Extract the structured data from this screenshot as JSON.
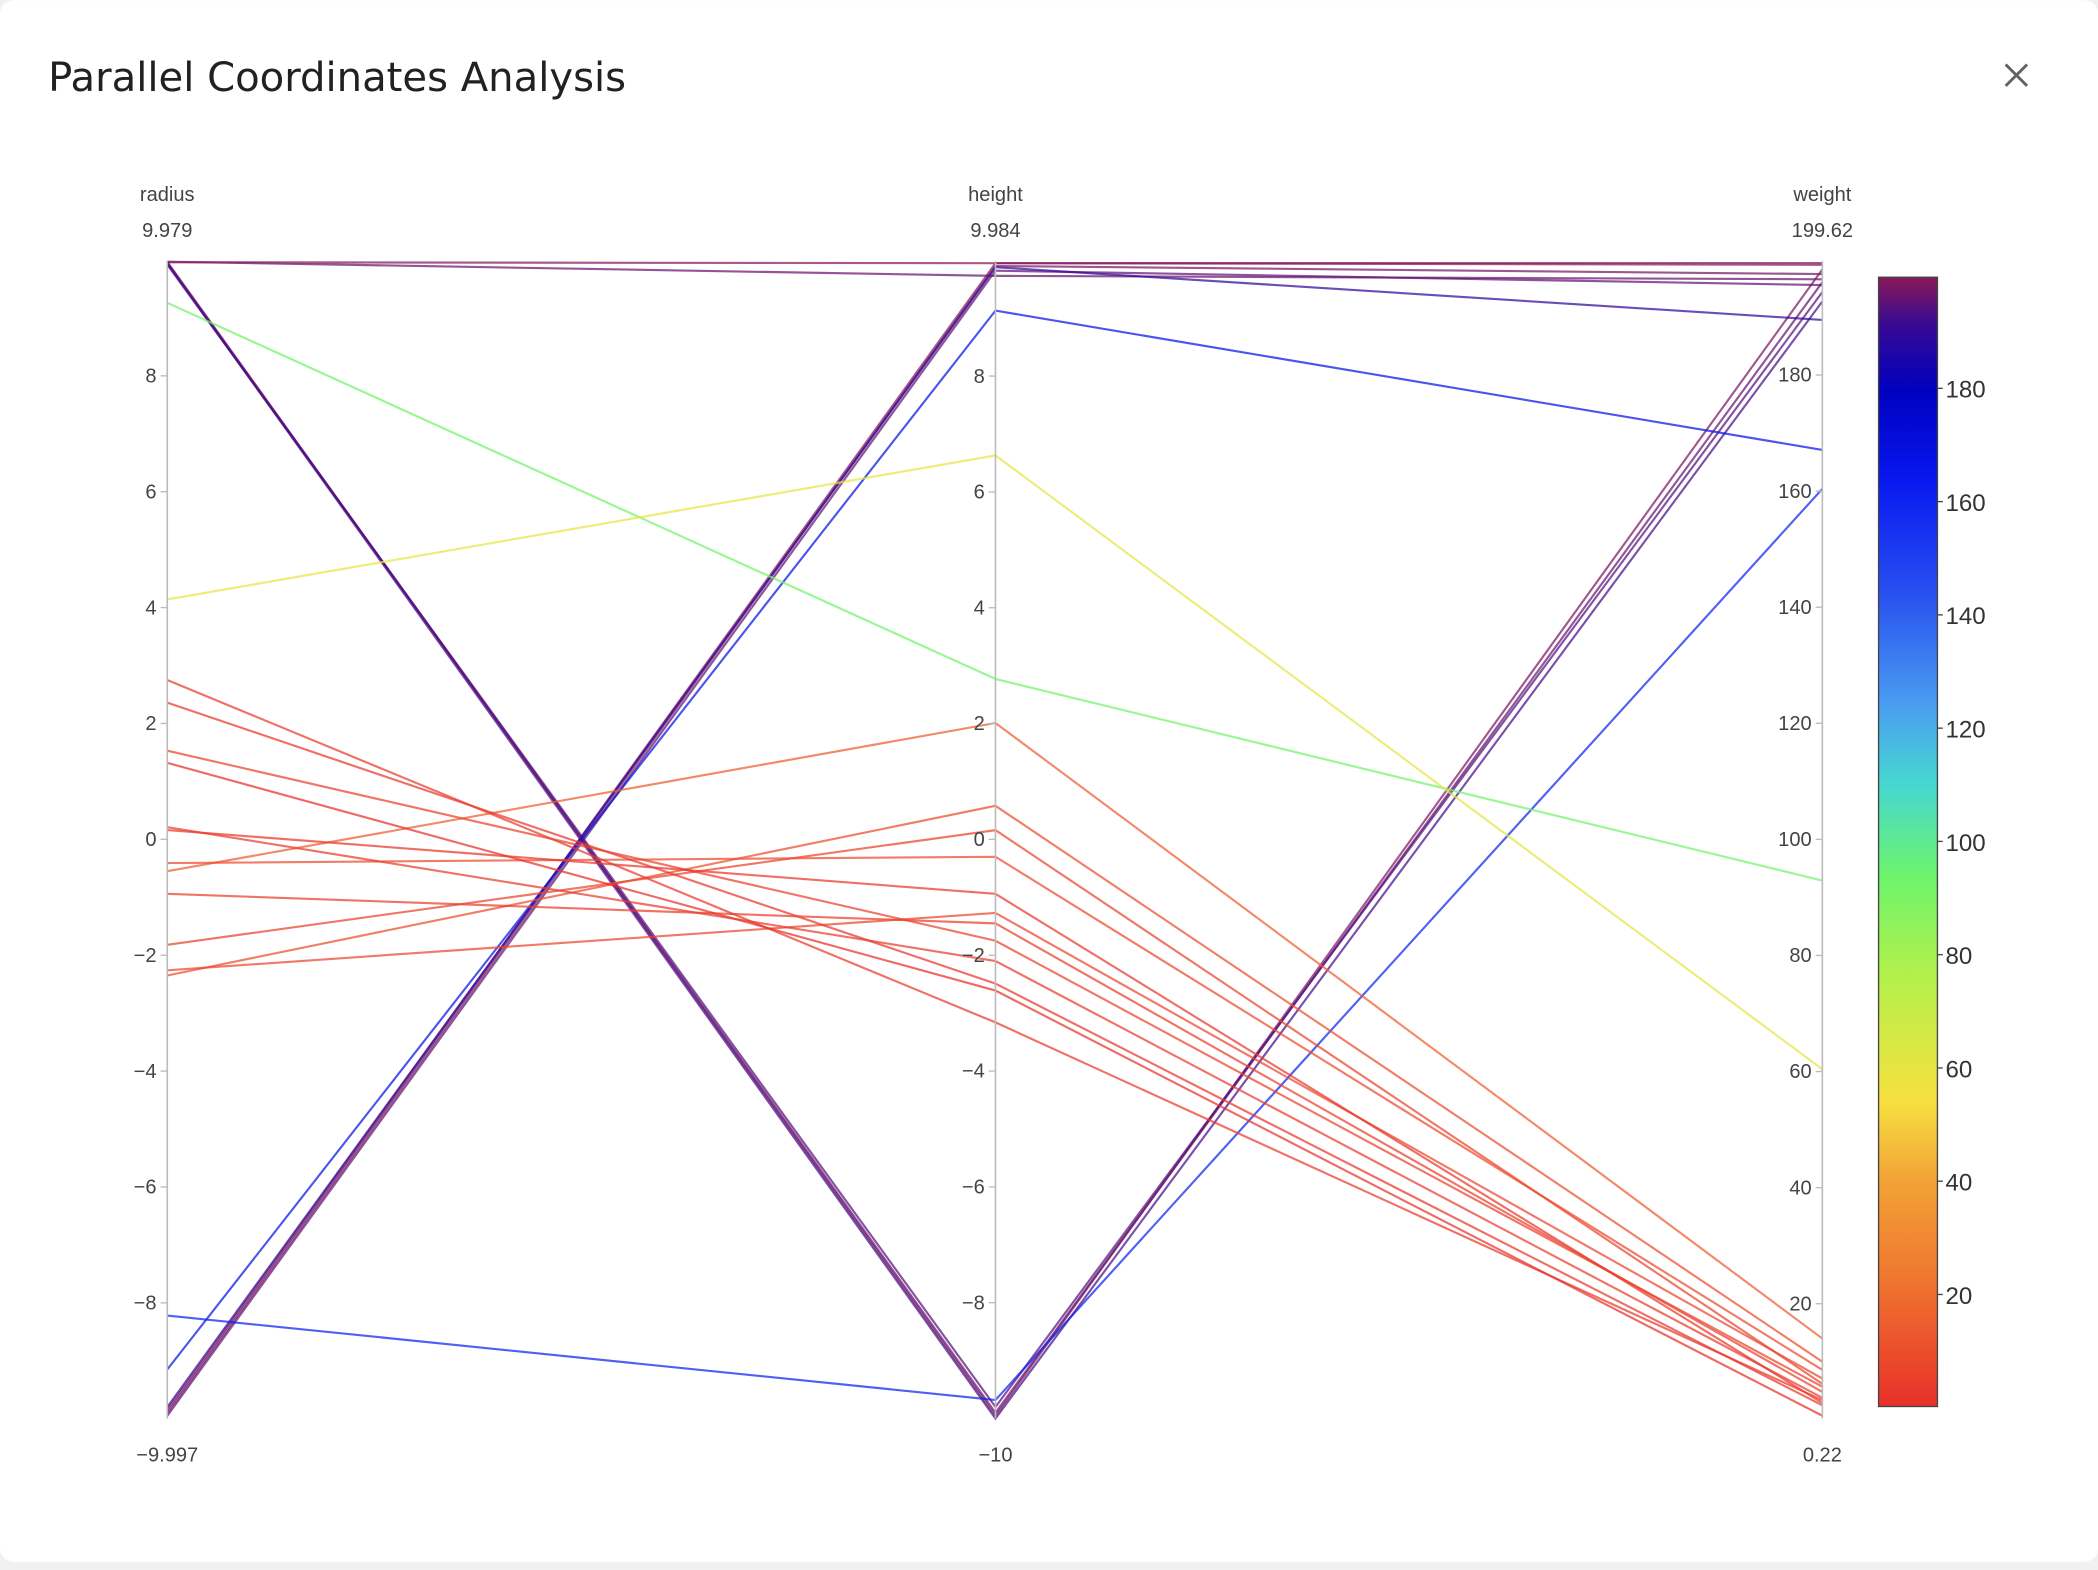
{
  "dialog": {
    "title": "Parallel Coordinates Analysis"
  },
  "chart_data": {
    "type": "parcoords",
    "dimensions": [
      {
        "label": "radius",
        "range": [
          {
            "value": -9.997,
            "label": "−9.997"
          },
          9.979
        ],
        "ticks": [
          {
            "value": -8,
            "label": "−8"
          },
          {
            "value": -6,
            "label": "−6"
          },
          {
            "value": -4,
            "label": "−4"
          },
          {
            "value": -2,
            "label": "−2"
          },
          0,
          2,
          4,
          6,
          8
        ]
      },
      {
        "label": "height",
        "range": [
          {
            "value": -10,
            "label": "−10"
          },
          9.984
        ],
        "ticks": [
          {
            "value": -8,
            "label": "−8"
          },
          {
            "value": -6,
            "label": "−6"
          },
          {
            "value": -4,
            "label": "−4"
          },
          {
            "value": -2,
            "label": "−2"
          },
          0,
          2,
          4,
          6,
          8
        ]
      },
      {
        "label": "weight",
        "range": [
          0.22,
          199.62
        ],
        "ticks": [
          20,
          40,
          60,
          80,
          100,
          120,
          140,
          160,
          180
        ]
      }
    ],
    "color_by": 2,
    "line_opacity": 0.72,
    "colorscale": [
      [
        0,
        "#e8302a"
      ],
      [
        0.12,
        "#f07a30"
      ],
      [
        0.2,
        "#f2a236"
      ],
      [
        0.27,
        "#f7e040"
      ],
      [
        0.38,
        "#b4f04a"
      ],
      [
        0.47,
        "#6cf46c"
      ],
      [
        0.55,
        "#46d8d0"
      ],
      [
        0.62,
        "#4a9ef0"
      ],
      [
        0.72,
        "#2850f0"
      ],
      [
        0.82,
        "#0818f0"
      ],
      [
        0.9,
        "#0000c0"
      ],
      [
        0.96,
        "#3a0a90"
      ],
      [
        1,
        "#8a1a58"
      ]
    ],
    "colorbar_ticks": [
      20,
      40,
      60,
      80,
      100,
      120,
      140,
      160,
      180
    ],
    "lines": [
      [
        9.97,
        9.73,
        196.5
      ],
      [
        9.96,
        9.95,
        199.3
      ],
      [
        9.97,
        -9.95,
        198.2
      ],
      [
        9.95,
        -9.9,
        196.0
      ],
      [
        9.92,
        -9.8,
        194.3
      ],
      [
        9.94,
        -10.0,
        192.7
      ],
      [
        -9.85,
        9.95,
        199.0
      ],
      [
        -9.9,
        9.9,
        197.4
      ],
      [
        -9.95,
        9.82,
        195.5
      ],
      [
        -9.8,
        9.88,
        189.5
      ],
      [
        -9.15,
        9.13,
        167.1
      ],
      [
        -8.22,
        -9.68,
        160.4
      ],
      [
        9.26,
        2.77,
        92.9
      ],
      [
        4.14,
        6.63,
        60.4
      ],
      [
        -0.55,
        2.01,
        14.0
      ],
      [
        -2.35,
        0.58,
        10.0
      ],
      [
        -1.82,
        0.16,
        6.2
      ],
      [
        -0.41,
        -0.3,
        8.6
      ],
      [
        -0.94,
        -1.45,
        4.8
      ],
      [
        -2.26,
        -1.27,
        7.1
      ],
      [
        2.75,
        -3.16,
        3.4
      ],
      [
        2.36,
        -2.49,
        2.5
      ],
      [
        1.53,
        -1.75,
        5.7
      ],
      [
        1.32,
        -2.61,
        0.7
      ],
      [
        0.21,
        -2.1,
        3.8
      ],
      [
        0.16,
        -0.94,
        2.9
      ]
    ]
  }
}
